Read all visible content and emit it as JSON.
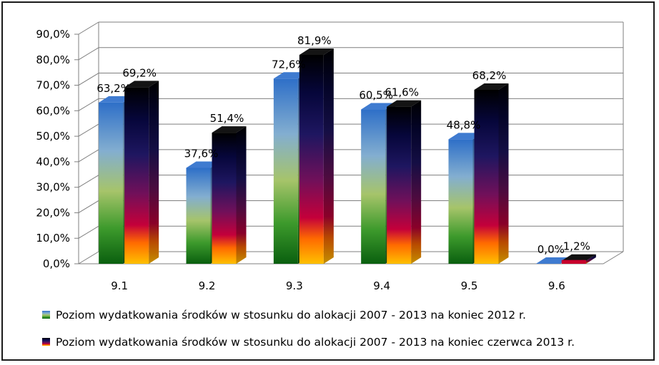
{
  "chart_data": {
    "type": "bar",
    "categories": [
      "9.1",
      "9.2",
      "9.3",
      "9.4",
      "9.5",
      "9.6"
    ],
    "series": [
      {
        "name": "Poziom wydatkowania środków w stosunku do alokacji 2007 - 2013 na koniec 2012 r.",
        "values": [
          63.2,
          37.6,
          72.6,
          60.5,
          48.8,
          0.0
        ],
        "labels": [
          "63,2%",
          "37,6%",
          "72,6%",
          "60,5%",
          "48,8%",
          "0,0%"
        ]
      },
      {
        "name": "Poziom wydatkowania środków w stosunku do alokacji 2007 - 2013 na koniec czerwca 2013 r.",
        "values": [
          69.2,
          51.4,
          81.9,
          61.6,
          68.2,
          1.2
        ],
        "labels": [
          "69,2%",
          "51,4%",
          "81,9%",
          "61,6%",
          "68,2%",
          "1,2%"
        ]
      }
    ],
    "y_ticks": [
      "0,0%",
      "10,0%",
      "20,0%",
      "30,0%",
      "40,0%",
      "50,0%",
      "60,0%",
      "70,0%",
      "80,0%",
      "90,0%"
    ],
    "ylim": [
      0,
      90
    ],
    "grid": true,
    "legend_position": "bottom",
    "title": "",
    "xlabel": "",
    "ylabel": ""
  }
}
